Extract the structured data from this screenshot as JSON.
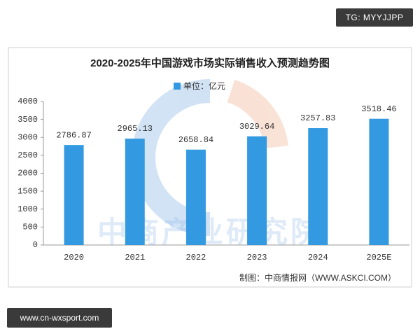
{
  "badge": "TG: MYYJJPP",
  "url": "www.cn-wxsport.com",
  "chart_data": {
    "type": "bar",
    "title": "2020-2025年中国游戏市场实际销售收入预测趋势图",
    "watermark": "中商产业研究院",
    "source": "制图：中商情报网（WWW.ASKCI.COM）",
    "categories": [
      "2020",
      "2021",
      "2022",
      "2023",
      "2024",
      "2025E"
    ],
    "series": [
      {
        "name": "单位：亿元",
        "color": "#3399e0",
        "values": [
          2786.87,
          2965.13,
          2658.84,
          3029.64,
          3257.83,
          3518.46
        ]
      }
    ],
    "ylim": [
      0,
      4000
    ],
    "yticks": [
      0,
      500,
      1000,
      1500,
      2000,
      2500,
      3000,
      3500,
      4000
    ],
    "grid": false
  }
}
